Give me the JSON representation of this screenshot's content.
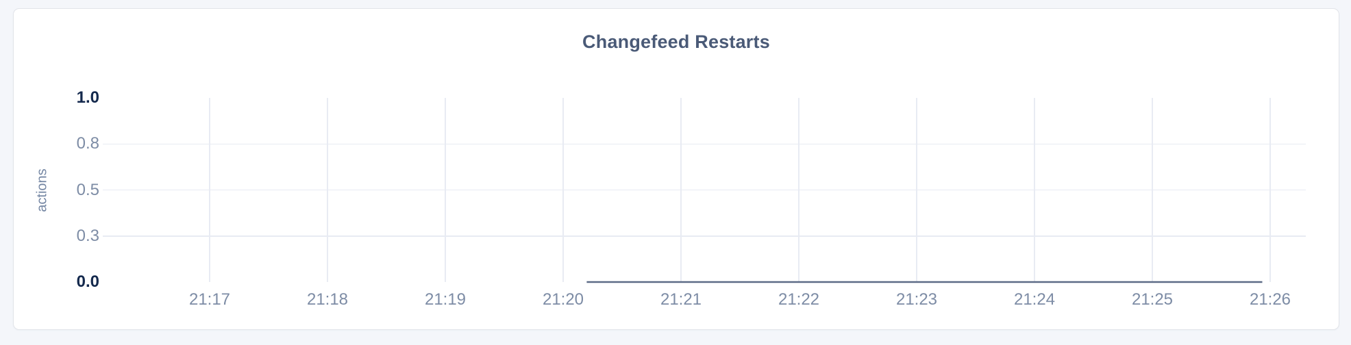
{
  "page": {
    "background_color": "#f4f6fa",
    "card_background": "#ffffff",
    "card_border_color": "#e2e4e9"
  },
  "chart_data": {
    "type": "line",
    "title": "Changefeed Restarts",
    "title_color": "#4a5a77",
    "xlabel": "",
    "ylabel": "actions",
    "ylim": [
      0,
      1
    ],
    "grid": true,
    "legend": false,
    "x_tick_labels": [
      "21:17",
      "21:18",
      "21:19",
      "21:20",
      "21:21",
      "21:22",
      "21:23",
      "21:24",
      "21:25",
      "21:26"
    ],
    "y_ticks": [
      {
        "value": 1.0,
        "label": "1.0",
        "bold": true,
        "gridline": false
      },
      {
        "value": 0.75,
        "label": "0.8",
        "bold": false,
        "gridline": true
      },
      {
        "value": 0.5,
        "label": "0.5",
        "bold": false,
        "gridline": true
      },
      {
        "value": 0.25,
        "label": "0.3",
        "bold": false,
        "gridline": true
      },
      {
        "value": 0.0,
        "label": "0.0",
        "bold": true,
        "gridline": false
      }
    ],
    "series": [
      {
        "name": "actions",
        "color": "#5c6b86",
        "points": [
          {
            "x": "21:20:12",
            "y": 0
          },
          {
            "x": "21:25:56",
            "y": 0
          }
        ]
      }
    ]
  }
}
